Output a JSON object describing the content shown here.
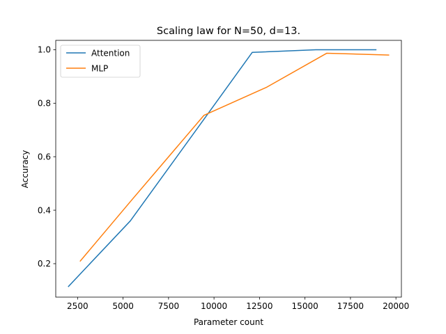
{
  "chart_data": {
    "type": "line",
    "title": "Scaling law for N=50, d=13.",
    "xlabel": "Parameter count",
    "ylabel": "Accuracy",
    "xlim": [
      1300,
      20300
    ],
    "ylim": [
      0.075,
      1.035
    ],
    "x_ticks": [
      2500,
      5000,
      7500,
      10000,
      12500,
      15000,
      17500,
      20000
    ],
    "x_tick_labels": [
      "2500",
      "5000",
      "7500",
      "10000",
      "12500",
      "15000",
      "17500",
      "20000"
    ],
    "y_ticks": [
      0.2,
      0.4,
      0.6,
      0.8,
      1.0
    ],
    "y_tick_labels": [
      "0.2",
      "0.4",
      "0.6",
      "0.8",
      "1.0"
    ],
    "grid": false,
    "legend_position": "top-left",
    "series": [
      {
        "name": "Attention",
        "color": "#1f77b4",
        "x": [
          2000,
          5400,
          9500,
          12100,
          15600,
          18900
        ],
        "y": [
          0.115,
          0.36,
          0.745,
          0.99,
          1.0,
          1.0
        ]
      },
      {
        "name": "MLP",
        "color": "#ff7f0e",
        "x": [
          2650,
          5500,
          9450,
          12900,
          16200,
          19600
        ],
        "y": [
          0.21,
          0.44,
          0.755,
          0.86,
          0.987,
          0.98
        ]
      }
    ]
  }
}
